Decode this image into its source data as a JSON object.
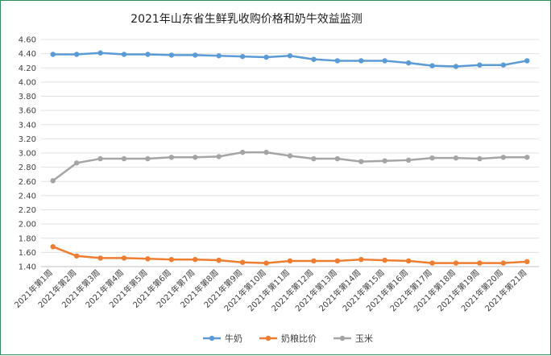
{
  "chart_data": {
    "type": "line",
    "title": "2021年山东省生鲜乳收购价格和奶牛效益监测",
    "xlabel": "",
    "ylabel": "",
    "ylim": [
      1.4,
      4.6
    ],
    "ytick_step": 0.2,
    "grid": true,
    "legend_position": "bottom",
    "categories": [
      "2021年第1周",
      "2021年第2周",
      "2021年第3周",
      "2021年第4周",
      "2021年第5周",
      "2021年第6周",
      "2021年第7周",
      "2021年第8周",
      "2021年第9周",
      "2021年第10周",
      "2021年第11周",
      "2021年第12周",
      "2021年第13周",
      "2021年第14周",
      "2021年第15周",
      "2021年第16周",
      "2021年第17周",
      "2021年第18周",
      "2021年第19周",
      "2021年第20周",
      "2021年第21周"
    ],
    "series": [
      {
        "name": "牛奶",
        "color": "#5b9bd5",
        "values": [
          4.39,
          4.39,
          4.41,
          4.39,
          4.39,
          4.38,
          4.38,
          4.37,
          4.36,
          4.35,
          4.37,
          4.32,
          4.3,
          4.3,
          4.3,
          4.27,
          4.23,
          4.22,
          4.24,
          4.24,
          4.3
        ]
      },
      {
        "name": "奶粮比价",
        "color": "#ed7d31",
        "values": [
          1.68,
          1.55,
          1.52,
          1.52,
          1.51,
          1.5,
          1.5,
          1.49,
          1.46,
          1.45,
          1.48,
          1.48,
          1.48,
          1.5,
          1.49,
          1.48,
          1.45,
          1.45,
          1.45,
          1.45,
          1.47
        ]
      },
      {
        "name": "玉米",
        "color": "#a5a5a5",
        "values": [
          2.61,
          2.86,
          2.92,
          2.92,
          2.92,
          2.94,
          2.94,
          2.95,
          3.01,
          3.01,
          2.96,
          2.92,
          2.92,
          2.88,
          2.89,
          2.9,
          2.93,
          2.93,
          2.92,
          2.94,
          2.94
        ]
      }
    ]
  }
}
